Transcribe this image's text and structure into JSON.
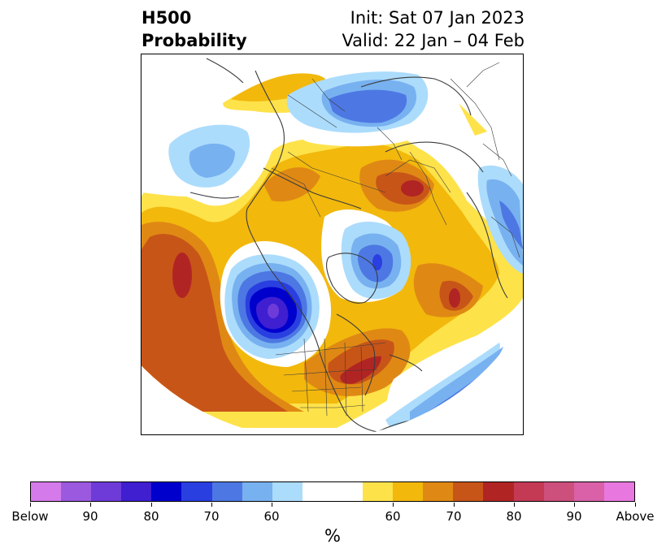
{
  "header": {
    "variable": "H500",
    "product": "Probability",
    "init": "Init: Sat 07 Jan 2023",
    "valid": "Valid: 22 Jan – 04 Feb"
  },
  "map": {
    "projection": "north-polar-stereographic",
    "features": [
      {
        "name": "deep-below-center",
        "region": "western Canada / Gulf of Alaska",
        "category": "Below",
        "peak_percent": "Below >90"
      },
      {
        "name": "below-center-greenland",
        "region": "Greenland / Davis Strait",
        "category": "Below",
        "peak_percent": "70-80"
      },
      {
        "name": "below-center-siberia",
        "region": "Central Siberia",
        "category": "Below",
        "peak_percent": "70-80"
      },
      {
        "name": "below-center-atlantic",
        "region": "Subtropical Atlantic",
        "category": "Below",
        "peak_percent": "70-80"
      },
      {
        "name": "below-center-europe",
        "region": "Western Europe (right edge)",
        "category": "Below",
        "peak_percent": "70-80"
      },
      {
        "name": "above-center-pacific",
        "region": "North Pacific",
        "category": "Above",
        "peak_percent": "80-85"
      },
      {
        "name": "above-center-eastus",
        "region": "Eastern United States",
        "category": "Above",
        "peak_percent": "80-85"
      },
      {
        "name": "above-center-arctic",
        "region": "Svalbard / Barents Sea",
        "category": "Above",
        "peak_percent": "80-85"
      },
      {
        "name": "above-center-northatlantic",
        "region": "North Atlantic",
        "category": "Above",
        "peak_percent": "70-80"
      }
    ]
  },
  "colorbar": {
    "unit": "%",
    "colors": [
      "#d57aea",
      "#9b59e0",
      "#6e3bd9",
      "#3f1fd0",
      "#0000cd",
      "#2a3fe0",
      "#4d78e3",
      "#78b1f0",
      "#acdcfc",
      "#ffffff",
      "#ffffff",
      "#fee24a",
      "#f2b80c",
      "#df8914",
      "#c85518",
      "#b02523",
      "#c43a55",
      "#cd4f7c",
      "#da61a8",
      "#e878df"
    ],
    "labels": [
      "Below",
      "90",
      "80",
      "70",
      "60",
      "60",
      "70",
      "80",
      "90",
      "Above"
    ]
  },
  "colors": {
    "frame": "#000000",
    "coastline": "#3b3b3b"
  }
}
